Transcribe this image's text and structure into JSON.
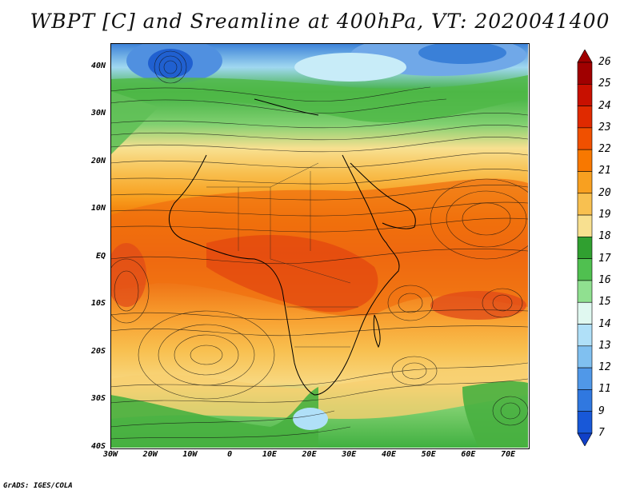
{
  "title": "WBPT [C] and Sreamline at 400hPa, VT: 2020041400",
  "credit": "GrADS: IGES/COLA",
  "lat_ticks": [
    "40N",
    "30N",
    "20N",
    "10N",
    "EQ",
    "10S",
    "20S",
    "30S",
    "40S"
  ],
  "lat_values": [
    40,
    30,
    20,
    10,
    0,
    -10,
    -20,
    -30,
    -40
  ],
  "lon_ticks": [
    "30W",
    "20W",
    "10W",
    "0",
    "10E",
    "20E",
    "30E",
    "40E",
    "50E",
    "60E",
    "70E"
  ],
  "lon_values": [
    -30,
    -20,
    -10,
    0,
    10,
    20,
    30,
    40,
    50,
    60,
    70
  ],
  "colorbar": {
    "labels": [
      "26",
      "25",
      "24",
      "23",
      "22",
      "21",
      "20",
      "19",
      "18",
      "17",
      "16",
      "15",
      "14",
      "13",
      "12",
      "11",
      "9",
      "7"
    ],
    "colors": [
      "#a00000",
      "#c81000",
      "#e02a00",
      "#f05000",
      "#f87800",
      "#f8a020",
      "#f8c050",
      "#f8e090",
      "#30a030",
      "#50c050",
      "#90e090",
      "#e0f8f0",
      "#b0e0f8",
      "#80c0f0",
      "#5098e8",
      "#3078e0",
      "#1858d8"
    ],
    "tip_bottom_color": "#1040c8"
  },
  "map": {
    "region": "Africa and Indian Ocean, 30W-75E, 40S-45N",
    "extent": {
      "lon_min": -30,
      "lon_max": 75,
      "lat_min": -40,
      "lat_max": 45
    }
  }
}
